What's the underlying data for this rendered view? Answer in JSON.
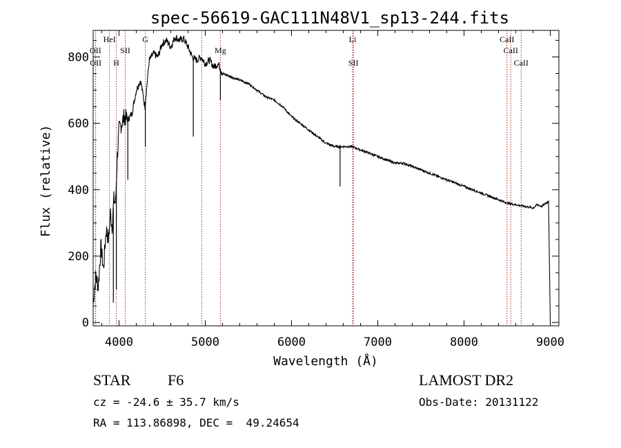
{
  "chart_data": {
    "type": "line",
    "title": "spec-56619-GAC111N48V1_sp13-244.fits",
    "xlabel": "Wavelength (Å)",
    "ylabel": "Flux (relative)",
    "xlim": [
      3700,
      9100
    ],
    "ylim": [
      -10,
      880
    ],
    "x_ticks": [
      4000,
      5000,
      6000,
      7000,
      8000,
      9000
    ],
    "x_tick_labels": [
      "4000",
      "5000",
      "6000",
      "7000",
      "8000",
      "9000"
    ],
    "y_ticks": [
      0,
      200,
      400,
      600,
      800
    ],
    "y_tick_labels": [
      "0",
      "200",
      "400",
      "600",
      "800"
    ],
    "grid": false,
    "line_color": "#000000",
    "marker_color": "#b22222",
    "spectrum": {
      "x": [
        3700,
        3730,
        3760,
        3790,
        3820,
        3850,
        3880,
        3900,
        3920,
        3940,
        3960,
        3980,
        4000,
        4030,
        4060,
        4100,
        4150,
        4200,
        4250,
        4300,
        4350,
        4400,
        4450,
        4500,
        4550,
        4600,
        4650,
        4700,
        4750,
        4800,
        4850,
        4900,
        4950,
        5000,
        5050,
        5100,
        5150,
        5200,
        5300,
        5400,
        5500,
        5600,
        5700,
        5800,
        5900,
        6000,
        6100,
        6200,
        6300,
        6400,
        6500,
        6600,
        6700,
        6800,
        6900,
        7000,
        7100,
        7200,
        7300,
        7400,
        7500,
        7600,
        7700,
        7800,
        7900,
        8000,
        8100,
        8200,
        8300,
        8400,
        8500,
        8600,
        8700,
        8800,
        8850,
        8900,
        8980,
        9000
      ],
      "y": [
        60,
        140,
        110,
        230,
        160,
        280,
        250,
        330,
        290,
        370,
        360,
        500,
        580,
        600,
        620,
        610,
        630,
        700,
        730,
        650,
        790,
        810,
        800,
        840,
        850,
        830,
        860,
        850,
        855,
        830,
        800,
        790,
        800,
        780,
        790,
        770,
        780,
        750,
        740,
        730,
        720,
        700,
        680,
        670,
        650,
        620,
        600,
        580,
        560,
        540,
        530,
        530,
        530,
        520,
        510,
        500,
        490,
        480,
        480,
        470,
        460,
        450,
        440,
        430,
        420,
        410,
        400,
        390,
        380,
        370,
        360,
        355,
        350,
        345,
        355,
        350,
        365,
        0
      ]
    },
    "absorption_dips": [
      {
        "x": 3934,
        "y": 60
      },
      {
        "x": 3969,
        "y": 100
      },
      {
        "x": 4102,
        "y": 430
      },
      {
        "x": 4305,
        "y": 530
      },
      {
        "x": 4861,
        "y": 560
      },
      {
        "x": 5175,
        "y": 670
      },
      {
        "x": 6563,
        "y": 410
      }
    ],
    "line_markers": [
      {
        "label": "OII",
        "x": 3727,
        "row": 2
      },
      {
        "label": "OII",
        "x": 3729,
        "row": 3
      },
      {
        "label": "HeI",
        "x": 3889,
        "row": 1
      },
      {
        "label": "H",
        "x": 3969,
        "row": 3
      },
      {
        "label": "SII",
        "x": 4072,
        "row": 2
      },
      {
        "label": "G",
        "x": 4305,
        "row": 1
      },
      {
        "label": "",
        "x": 4959,
        "row": 0
      },
      {
        "label": "Mg",
        "x": 5175,
        "row": 2
      },
      {
        "label": "Li",
        "x": 6708,
        "row": 1
      },
      {
        "label": "SII",
        "x": 6717,
        "row": 3
      },
      {
        "label": "CaII",
        "x": 8498,
        "row": 1
      },
      {
        "label": "CaII",
        "x": 8542,
        "row": 2
      },
      {
        "label": "CaII",
        "x": 8662,
        "row": 3
      }
    ]
  },
  "info": {
    "object_class": "STAR",
    "subclass": "F6",
    "survey": "LAMOST DR2",
    "cz": "cz = -24.6 ± 35.7 km/s",
    "obs_date": "Obs-Date: 20131122",
    "coords": "RA = 113.86898, DEC =  49.24654"
  }
}
